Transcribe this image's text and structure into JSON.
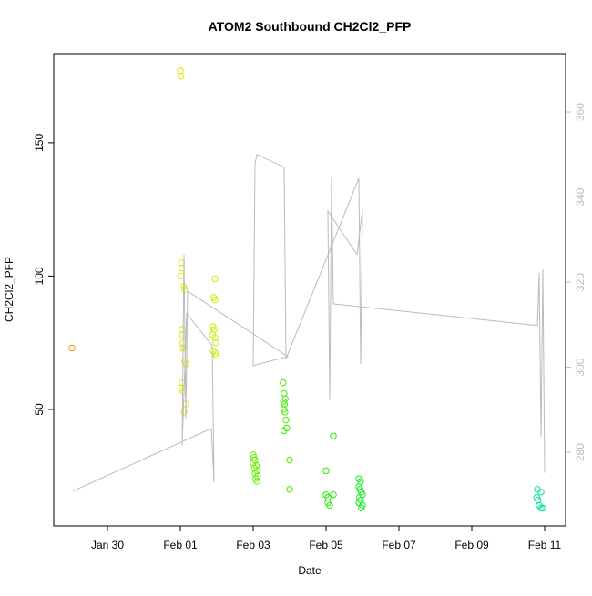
{
  "chart_data": {
    "type": "scatter",
    "title": "ATOM2 Southbound CH2Cl2_PFP",
    "xlabel": "Date",
    "ylabel": "CH2Cl2_PFP",
    "xlim": [
      -1.475,
      12.575
    ],
    "xticks": [
      {
        "value": 0,
        "label": "Jan 30"
      },
      {
        "value": 2,
        "label": "Feb 01"
      },
      {
        "value": 4,
        "label": "Feb 03"
      },
      {
        "value": 6,
        "label": "Feb 05"
      },
      {
        "value": 8,
        "label": "Feb 07"
      },
      {
        "value": 10,
        "label": "Feb 09"
      },
      {
        "value": 12,
        "label": "Feb 11"
      }
    ],
    "ylim": [
      6.3,
      183.4
    ],
    "yticks": [
      50,
      100,
      150
    ],
    "y2lim": [
      262.7,
      373.7
    ],
    "y2ticks": [
      280,
      300,
      320,
      340,
      360
    ],
    "y2color": "#bbbbbb",
    "series": [
      {
        "color": "#ff8c00",
        "x": [
          -0.975
        ],
        "values": [
          73
        ]
      },
      {
        "color": "#e6e600",
        "x": [
          2.0,
          2.02,
          2.03,
          2.04,
          2.02,
          2.1,
          2.12,
          2.05,
          2.06,
          2.07,
          2.03,
          2.1,
          2.12,
          2.15,
          2.05,
          2.03,
          2.06,
          2.15,
          2.1
        ],
        "values": [
          177,
          175,
          105,
          103,
          100,
          96,
          95,
          80,
          78,
          75,
          73,
          73,
          68,
          67,
          60,
          58,
          57,
          52,
          49
        ]
      },
      {
        "color": "#c8f000",
        "x": [
          2.95,
          2.92,
          2.95,
          2.9,
          2.93,
          2.88,
          2.95,
          2.97,
          2.9,
          2.97,
          2.99
        ],
        "values": [
          99,
          92,
          91,
          81,
          80,
          78,
          77,
          75,
          72,
          71,
          70
        ]
      },
      {
        "color": "#66ee00",
        "x": [
          4.0,
          4.02,
          4.05,
          4.0,
          4.08,
          4.03,
          4.1,
          4.05,
          4.12,
          4.07,
          4.1
        ],
        "values": [
          33,
          32,
          31,
          30,
          29,
          28,
          27,
          26,
          25,
          24,
          23
        ]
      },
      {
        "color": "#44ee00",
        "x": [
          4.82,
          4.85,
          4.88,
          4.83,
          4.86,
          4.84,
          4.87,
          4.9,
          4.92,
          4.84,
          5.0,
          5.0
        ],
        "values": [
          60,
          56,
          54,
          53,
          52,
          50,
          49,
          46,
          43,
          42,
          31,
          20
        ]
      },
      {
        "color": "#22ee00",
        "x": [
          6.0,
          6.0,
          6.05,
          6.05,
          6.1,
          6.2,
          6.2
        ],
        "values": [
          27,
          18,
          17,
          15,
          14,
          18,
          40
        ]
      },
      {
        "color": "#11ee22",
        "x": [
          6.9,
          6.95,
          6.9,
          6.93,
          6.97,
          7.0,
          6.92,
          6.95,
          6.9,
          7.0,
          6.97
        ],
        "values": [
          24,
          23,
          21,
          20,
          19,
          18,
          17,
          16,
          15,
          14,
          13
        ]
      },
      {
        "color": "#00e8a0",
        "x": [
          11.8,
          11.9,
          11.78,
          11.82,
          11.85,
          11.9,
          11.95
        ],
        "values": [
          20,
          19,
          17,
          16,
          14,
          13,
          13
        ]
      },
      {
        "type": "line",
        "axis": "y2",
        "color": "#bbbbbb",
        "x": [
          -0.95,
          2.85,
          2.925,
          2.875,
          2.175,
          2.05,
          2.1,
          2.15,
          2.2,
          4.95,
          4.0,
          4.05,
          4.1,
          4.85,
          4.9,
          6.9,
          6.95,
          7.0,
          6.85,
          6.05,
          6.1,
          6.15,
          6.2,
          11.8,
          11.85,
          11.9,
          11.95,
          12.0
        ],
        "values": [
          270.9,
          285.6,
          273.0,
          305.1,
          312.6,
          281.6,
          326.5,
          288.0,
          317.9,
          302.5,
          300.4,
          347.8,
          350.0,
          347.0,
          302.0,
          344.4,
          300.8,
          337.1,
          326.5,
          336.7,
          292.3,
          344.4,
          314.9,
          309.8,
          322.2,
          283.7,
          323.0,
          275.2
        ]
      }
    ]
  }
}
